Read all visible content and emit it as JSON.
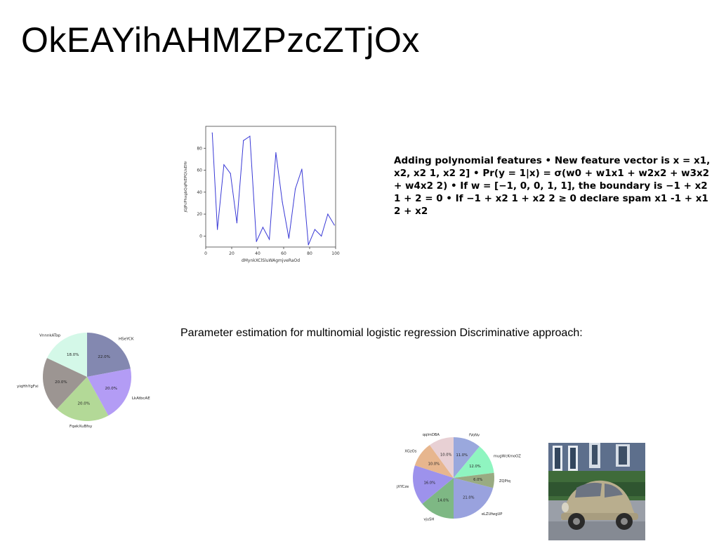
{
  "page": {
    "title": "OkEAYihAHMZPzcZTjOx",
    "polynomial_text": "Adding polynomial features • New feature vector is x = x1, x2, x2 1, x2 2] • Pr(y = 1|x) = σ(w0 + w1x1 + w2x2 + w3x2 + w4x2 2) • If w = [−1, 0, 0, 1, 1], the boundary is −1 + x2 1 + 2 = 0 • If −1 + x2 1 + x2 2 ≥ 0 declare spam x1 -1 + x1 2 + x2",
    "estimation_text": "Parameter estimation for multinomial logistic regression Discriminative approach:"
  },
  "chart_data": [
    {
      "type": "line",
      "xlabel": "dMynkXClSluWAgmjveRaOd",
      "ylabel": "jGJPcPhxgbQqPkEPQUsEHr",
      "xlim": [
        0,
        100
      ],
      "ylim": [
        -10,
        100
      ],
      "x_ticks": [
        0,
        20,
        40,
        60,
        80,
        100
      ],
      "y_ticks": [
        0,
        20,
        40,
        60,
        80
      ],
      "color": "#3a3ad6",
      "x": [
        5,
        9,
        14,
        19,
        24,
        29,
        34,
        39,
        44,
        49,
        54,
        59,
        64,
        69,
        74,
        79,
        84,
        89,
        94,
        99
      ],
      "values": [
        94,
        6,
        65,
        57,
        12,
        87,
        91,
        -5,
        8,
        -3,
        76,
        31,
        -2,
        43,
        61,
        -8,
        6,
        0,
        20,
        10
      ]
    },
    {
      "type": "pie",
      "labels": [
        "HSeYCK",
        "LkAtbcAE",
        "FqekXuBfsy",
        "yiqHhYgFxi",
        "VnnnkATap"
      ],
      "values": [
        22.0,
        20.0,
        20.0,
        20.0,
        18.0
      ],
      "value_labels": [
        "22.0%",
        "20.0%",
        "20.0%",
        "20.0%",
        "18.0%"
      ],
      "colors": [
        "#8388b0",
        "#b39cf5",
        "#b3d997",
        "#9c9592",
        "#d4f8e8"
      ]
    },
    {
      "type": "pie",
      "labels": [
        "fVoNv",
        "mugWcKmoOZ",
        "ZQPtq",
        "eLZUfwgUP",
        "vjuSH",
        "jXYCze",
        "XGzOs",
        "qqlmDBA"
      ],
      "values": [
        11.0,
        12.0,
        6.0,
        21.0,
        14.0,
        16.0,
        10.0,
        10.0
      ],
      "value_labels": [
        "11.0%",
        "12.0%",
        "6.0%",
        "21.0%",
        "14.0%",
        "16.0%",
        "10.0%",
        "10.0%"
      ],
      "colors": [
        "#9aa8dd",
        "#8ff5c0",
        "#99ab82",
        "#99a2de",
        "#7eb884",
        "#9d92ec",
        "#e7b68e",
        "#e8d0d4"
      ]
    }
  ]
}
